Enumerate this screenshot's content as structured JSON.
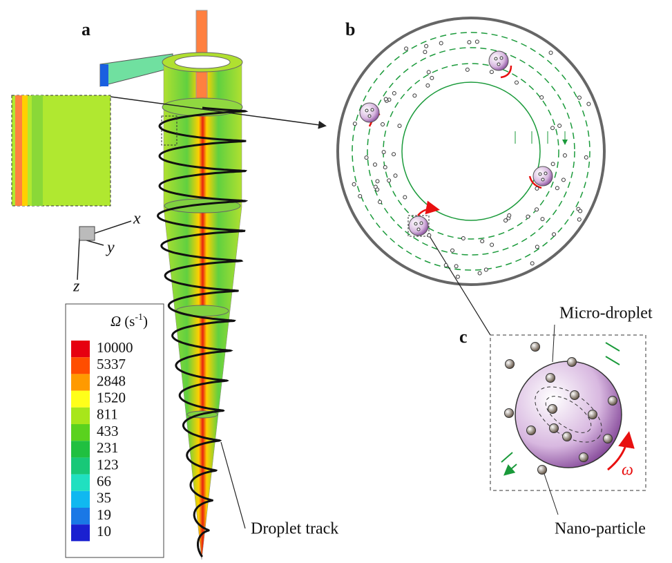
{
  "panels": {
    "a": "a",
    "b": "b",
    "c": "c"
  },
  "axes_triad": {
    "x": "x",
    "y": "y",
    "z": "z"
  },
  "legend": {
    "symbol": "Ω",
    "unit": "(s",
    "exponent": "-1",
    "close": ")",
    "levels": [
      10000,
      5337,
      2848,
      1520,
      811,
      433,
      231,
      123,
      66,
      35,
      19,
      10
    ],
    "colors": [
      "#e60010",
      "#ff4d00",
      "#ff9a00",
      "#ffff1a",
      "#a8e61a",
      "#5ad21e",
      "#20c040",
      "#18c878",
      "#20e0c0",
      "#10b8f0",
      "#1a78e6",
      "#1a20d0"
    ]
  },
  "annotations": {
    "droplet_track": "Droplet track",
    "micro_droplet": "Micro-droplet",
    "nano_particle": "Nano-particle",
    "omega": "ω"
  }
}
